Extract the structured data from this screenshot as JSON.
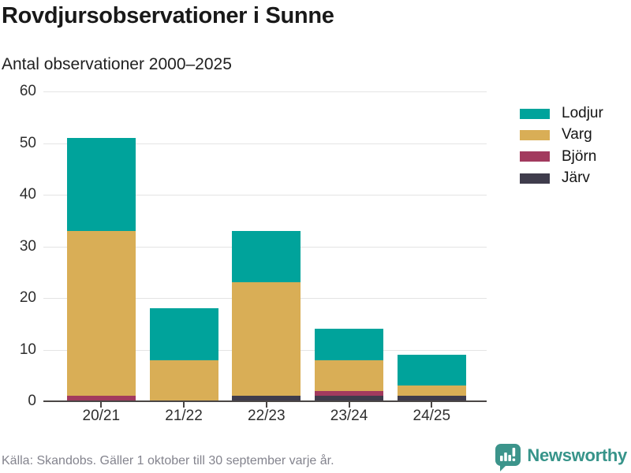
{
  "header": {
    "title": "Rovdjursobservationer i Sunne",
    "subtitle": "Antal observationer 2000–2025"
  },
  "chart_data": {
    "type": "bar",
    "stacked": true,
    "title": "Rovdjursobservationer i Sunne",
    "subtitle": "Antal observationer 2000–2025",
    "categories": [
      "20/21",
      "21/22",
      "22/23",
      "23/24",
      "24/25"
    ],
    "series": [
      {
        "name": "Lodjur",
        "key": "lodjur",
        "color": "#00a39b",
        "values": [
          18,
          10,
          10,
          6,
          6
        ]
      },
      {
        "name": "Varg",
        "key": "varg",
        "color": "#d9ae56",
        "values": [
          32,
          8,
          22,
          6,
          2
        ]
      },
      {
        "name": "Björn",
        "key": "bjorn",
        "color": "#a23a5e",
        "values": [
          1,
          0,
          0,
          1,
          0
        ]
      },
      {
        "name": "Järv",
        "key": "jarv",
        "color": "#3f3c4c",
        "values": [
          0,
          0,
          1,
          1,
          1
        ]
      }
    ],
    "totals": [
      51,
      18,
      33,
      14,
      9
    ],
    "xlabel": "",
    "ylabel": "",
    "ylim": [
      0,
      60
    ],
    "yticks": [
      0,
      10,
      20,
      30,
      40,
      50,
      60
    ],
    "grid": true,
    "legend_position": "right"
  },
  "footer": {
    "source": "Källa: Skandobs. Gäller 1 oktober till 30 september varje år."
  },
  "branding": {
    "logo_text": "Newsworthy",
    "logo_color": "#37948a",
    "logo_icon": "speech-bubble-bar-chart-icon"
  },
  "colors": {
    "gridline": "#e4e4e4",
    "axis": "#4a4645",
    "text": "#2e2e2e"
  }
}
